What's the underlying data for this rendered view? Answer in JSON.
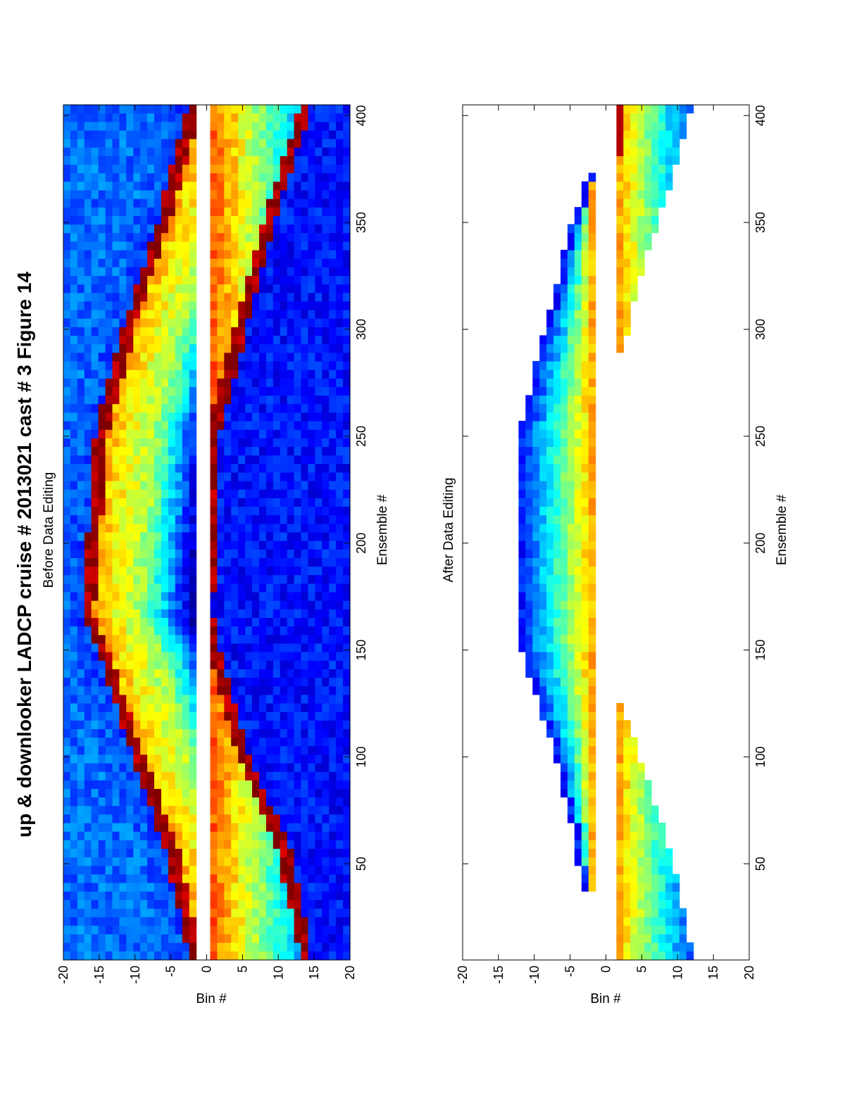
{
  "figure": {
    "title": "up & downlooker LADCP cruise # 2013021 cast # 3  Figure 14"
  },
  "chart_data": [
    {
      "type": "heatmap",
      "title": "Before Data Editing",
      "xlabel": "Ensemble #",
      "ylabel": "Bin #",
      "xlim": [
        5,
        405
      ],
      "ylim": [
        -20,
        20
      ],
      "xticks": [
        50,
        100,
        150,
        200,
        250,
        300,
        350,
        400
      ],
      "yticks": [
        -20,
        -15,
        -10,
        -5,
        0,
        5,
        10,
        15,
        20
      ],
      "colormap": "jet",
      "grid": false,
      "ensembles": [
        5,
        405
      ],
      "bins": [
        -20,
        20
      ],
      "missing_bins": [
        -1,
        0
      ],
      "features": {
        "bottom_reflection_uplooker_bin_at_ensemble": {
          "x": [
            8,
            55,
            100,
            150,
            165,
            250,
            300,
            350,
            400
          ],
          "y": [
            -2,
            -5,
            -10,
            -15,
            -17,
            -15,
            -11,
            -6,
            -2
          ]
        },
        "bottom_reflection_downlooker_bin_at_ensemble": {
          "x": [
            8,
            55,
            100,
            150,
            165,
            250,
            300,
            350,
            400
          ],
          "y": [
            14,
            11,
            5,
            1,
            0,
            1,
            5,
            9,
            14
          ]
        }
      }
    },
    {
      "type": "heatmap",
      "title": "After Data Editing",
      "xlabel": "Ensemble #",
      "ylabel": "Bin #",
      "xlim": [
        5,
        405
      ],
      "ylim": [
        -20,
        20
      ],
      "xticks": [
        50,
        100,
        150,
        200,
        250,
        300,
        350,
        400
      ],
      "yticks": [
        -20,
        -15,
        -10,
        -5,
        0,
        5,
        10,
        15,
        20
      ],
      "colormap": "jet",
      "grid": false,
      "valid_ranges": {
        "uplooker": {
          "ensembles": [
            35,
            372
          ],
          "top_bin_at_ensemble": {
            "x": [
              35,
              60,
              100,
              130,
              150,
              165,
              250,
              300,
              340,
              372
            ],
            "y": [
              -3,
              -4,
              -7,
              -10,
              -12,
              -12,
              -12,
              -8,
              -5,
              -2
            ]
          },
          "bottom_bin": -2
        },
        "downlooker_segments": [
          {
            "ensembles": [
              5,
              122
            ],
            "top_bin": 2,
            "bottom_bin_at_ensemble": {
              "x": [
                5,
                20,
                35,
                60,
                80,
                100,
                110,
                122
              ],
              "y": [
                12,
                11,
                10,
                8,
                6,
                4,
                3,
                2
              ]
            }
          },
          {
            "ensembles": [
              288,
              405
            ],
            "top_bin": 2,
            "bottom_bin_at_ensemble": {
              "x": [
                288,
                300,
                320,
                350,
                380,
                405
              ],
              "y": [
                2,
                3,
                4,
                7,
                10,
                12
              ]
            }
          }
        ]
      }
    }
  ]
}
